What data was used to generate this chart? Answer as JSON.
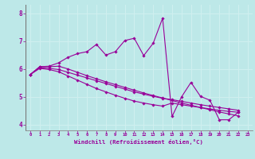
{
  "xlabel": "Windchill (Refroidissement éolien,°C)",
  "xlim": [
    -0.5,
    23.5
  ],
  "ylim": [
    3.8,
    8.3
  ],
  "xticks": [
    0,
    1,
    2,
    3,
    4,
    5,
    6,
    7,
    8,
    9,
    10,
    11,
    12,
    13,
    14,
    15,
    16,
    17,
    18,
    19,
    20,
    21,
    22,
    23
  ],
  "yticks": [
    4,
    5,
    6,
    7,
    8
  ],
  "bg_color": "#bde8e8",
  "line_color": "#990099",
  "grid_color": "#d0f0f0",
  "series": [
    [
      5.8,
      6.08,
      6.1,
      6.22,
      6.42,
      6.55,
      6.62,
      6.88,
      6.5,
      6.62,
      7.02,
      7.1,
      6.48,
      6.92,
      7.82,
      4.3,
      5.0,
      5.52,
      5.02,
      4.88,
      4.18,
      4.18,
      4.45
    ],
    [
      5.8,
      6.08,
      6.08,
      6.1,
      6.0,
      5.88,
      5.76,
      5.65,
      5.54,
      5.44,
      5.34,
      5.24,
      5.14,
      5.05,
      4.96,
      4.87,
      4.78,
      4.7,
      4.62,
      4.54,
      4.46,
      4.39,
      4.32
    ],
    [
      5.8,
      6.05,
      6.02,
      5.98,
      5.88,
      5.78,
      5.68,
      5.58,
      5.48,
      5.38,
      5.28,
      5.18,
      5.1,
      5.02,
      4.95,
      4.9,
      4.84,
      4.78,
      4.72,
      4.67,
      4.62,
      4.57,
      4.52
    ],
    [
      5.8,
      6.02,
      5.98,
      5.9,
      5.75,
      5.6,
      5.45,
      5.3,
      5.18,
      5.06,
      4.95,
      4.85,
      4.78,
      4.72,
      4.67,
      4.78,
      4.72,
      4.67,
      4.62,
      4.57,
      4.52,
      4.48,
      4.45
    ]
  ]
}
